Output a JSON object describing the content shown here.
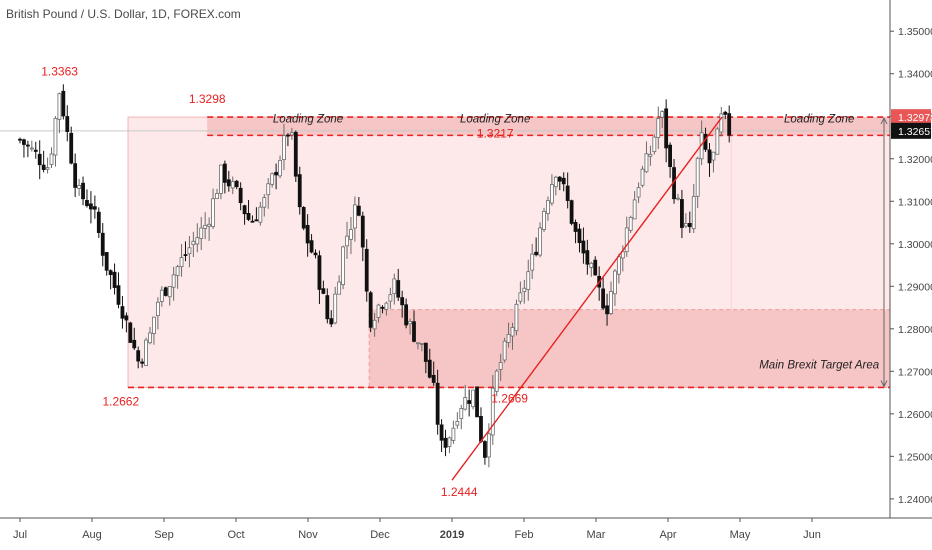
{
  "header": {
    "title": "British Pound / U.S. Dollar, 1D, FOREX.com"
  },
  "colors": {
    "up": "#6b6b6b",
    "down": "#111111",
    "accent_red": "#e82121",
    "zone_fill": "#f6c6c6",
    "wide_fill": "#fde9e9",
    "badge_fill": "#e95656",
    "price_badge_fill": "#111111"
  },
  "chart_data": {
    "type": "candlestick",
    "x_ticks": [
      "Jul",
      "Aug",
      "Sep",
      "Oct",
      "Nov",
      "Dec",
      "2019",
      "Feb",
      "Mar",
      "Apr",
      "May",
      "Jun"
    ],
    "y_ticks": [
      "1.35000",
      "1.34000",
      "1.33000",
      "1.32000",
      "1.31000",
      "1.30000",
      "1.29000",
      "1.28000",
      "1.27000",
      "1.26000",
      "1.25000",
      "1.24000"
    ],
    "ylim": [
      1.2355,
      1.3564
    ],
    "xlim_months": [
      0,
      12.5
    ],
    "current_price": "1.32657",
    "zone_price": "1.32978",
    "zones": [
      {
        "name": "Loading Zone",
        "top": 1.3298,
        "bottom": 1.3255
      },
      {
        "name": "Main Brexit Target Area",
        "top": 1.2845,
        "bottom": 1.2662
      }
    ],
    "wide_range": {
      "top": 1.3298,
      "bottom": 1.2662
    },
    "price_labels": [
      {
        "text": "1.3363",
        "x": 0.55,
        "y": 1.3363
      },
      {
        "text": "1.3298",
        "x": 2.6,
        "y": 1.3298
      },
      {
        "text": "1.3217",
        "x": 6.6,
        "y": 1.3217
      },
      {
        "text": "1.2662",
        "x": 1.4,
        "y": 1.2662
      },
      {
        "text": "1.2669",
        "x": 6.8,
        "y": 1.2669
      },
      {
        "text": "1.2444",
        "x": 6.1,
        "y": 1.2444
      }
    ],
    "zone_labels": [
      {
        "text": "Loading Zone",
        "x": 4.0,
        "y": 1.3285
      },
      {
        "text": "Loading Zone",
        "x": 6.6,
        "y": 1.3285
      },
      {
        "text": "Loading Zone",
        "x": 11.1,
        "y": 1.3285
      },
      {
        "text": "Main Brexit Target Area",
        "x": 11.1,
        "y": 1.2707
      }
    ],
    "trendline": {
      "start": [
        6.0,
        1.2444
      ],
      "end": [
        9.75,
        1.3298
      ]
    },
    "arrow": {
      "x": 12.0,
      "top": 1.3298,
      "bottom": 1.2662
    },
    "close_path": [
      [
        0,
        1.3245
      ],
      [
        0.4,
        1.318
      ],
      [
        0.55,
        1.3363
      ],
      [
        0.8,
        1.312
      ],
      [
        1.0,
        1.309
      ],
      [
        1.2,
        1.295
      ],
      [
        1.4,
        1.286
      ],
      [
        1.5,
        1.28
      ],
      [
        1.65,
        1.272
      ],
      [
        1.8,
        1.278
      ],
      [
        1.9,
        1.286
      ],
      [
        2.1,
        1.292
      ],
      [
        2.35,
        1.299
      ],
      [
        2.6,
        1.305
      ],
      [
        2.8,
        1.317
      ],
      [
        3.0,
        1.312
      ],
      [
        3.2,
        1.305
      ],
      [
        3.4,
        1.31
      ],
      [
        3.6,
        1.32
      ],
      [
        3.75,
        1.328
      ],
      [
        3.9,
        1.305
      ],
      [
        4.1,
        1.296
      ],
      [
        4.3,
        1.28
      ],
      [
        4.5,
        1.3
      ],
      [
        4.7,
        1.31
      ],
      [
        4.85,
        1.282
      ],
      [
        5.0,
        1.286
      ],
      [
        5.2,
        1.29
      ],
      [
        5.4,
        1.281
      ],
      [
        5.6,
        1.275
      ],
      [
        5.75,
        1.265
      ],
      [
        5.85,
        1.252
      ],
      [
        6.0,
        1.256
      ],
      [
        6.1,
        1.262
      ],
      [
        6.3,
        1.265
      ],
      [
        6.45,
        1.25
      ],
      [
        6.6,
        1.268
      ],
      [
        6.75,
        1.276
      ],
      [
        6.9,
        1.284
      ],
      [
        7.0,
        1.29
      ],
      [
        7.15,
        1.298
      ],
      [
        7.3,
        1.31
      ],
      [
        7.45,
        1.318
      ],
      [
        7.6,
        1.31
      ],
      [
        7.75,
        1.3
      ],
      [
        7.9,
        1.295
      ],
      [
        8.0,
        1.29
      ],
      [
        8.15,
        1.285
      ],
      [
        8.3,
        1.295
      ],
      [
        8.45,
        1.305
      ],
      [
        8.6,
        1.315
      ],
      [
        8.75,
        1.321
      ],
      [
        8.9,
        1.332
      ],
      [
        9.05,
        1.315
      ],
      [
        9.2,
        1.305
      ],
      [
        9.3,
        1.302
      ],
      [
        9.45,
        1.325
      ],
      [
        9.6,
        1.318
      ],
      [
        9.75,
        1.33
      ],
      [
        9.85,
        1.3265
      ]
    ]
  }
}
